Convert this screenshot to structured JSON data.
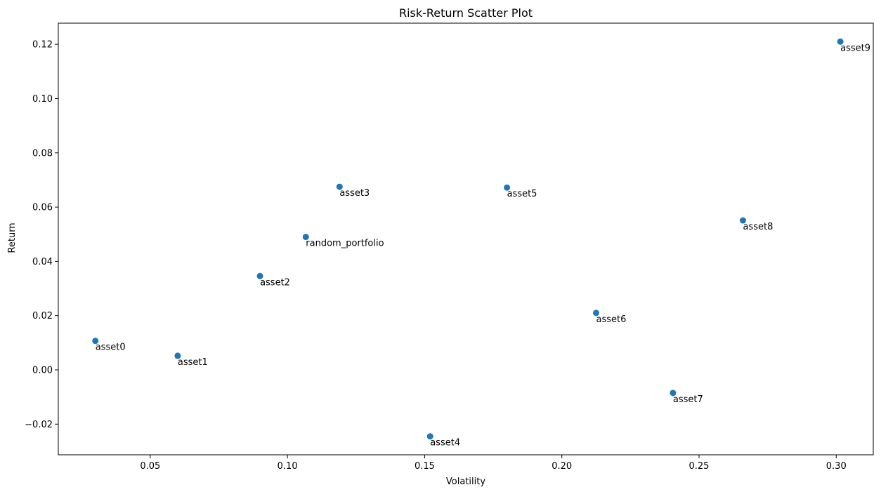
{
  "chart_data": {
    "type": "scatter",
    "title": "Risk-Return Scatter Plot",
    "xlabel": "Volatility",
    "ylabel": "Return",
    "xlim": [
      0.0165,
      0.3135
    ],
    "ylim": [
      -0.0313,
      0.1278
    ],
    "xticks": [
      0.05,
      0.1,
      0.15,
      0.2,
      0.25,
      0.3
    ],
    "xtick_labels": [
      "0.05",
      "0.10",
      "0.15",
      "0.20",
      "0.25",
      "0.30"
    ],
    "yticks": [
      -0.02,
      0.0,
      0.02,
      0.04,
      0.06,
      0.08,
      0.1,
      0.12
    ],
    "ytick_labels": [
      "−0.02",
      "0.00",
      "0.02",
      "0.04",
      "0.06",
      "0.08",
      "0.10",
      "0.12"
    ],
    "grid": false,
    "color": "#1f77b4",
    "points": [
      {
        "label": "asset0",
        "x": 0.03,
        "y": 0.0107
      },
      {
        "label": "asset1",
        "x": 0.06,
        "y": 0.0052
      },
      {
        "label": "asset2",
        "x": 0.09,
        "y": 0.0346
      },
      {
        "label": "asset3",
        "x": 0.119,
        "y": 0.0675
      },
      {
        "label": "asset4",
        "x": 0.152,
        "y": -0.0245
      },
      {
        "label": "asset5",
        "x": 0.18,
        "y": 0.0672
      },
      {
        "label": "asset6",
        "x": 0.2125,
        "y": 0.021
      },
      {
        "label": "asset7",
        "x": 0.2405,
        "y": -0.0085
      },
      {
        "label": "asset8",
        "x": 0.266,
        "y": 0.0551
      },
      {
        "label": "asset9",
        "x": 0.3015,
        "y": 0.121
      },
      {
        "label": "random_portfolio",
        "x": 0.1067,
        "y": 0.049
      }
    ]
  }
}
